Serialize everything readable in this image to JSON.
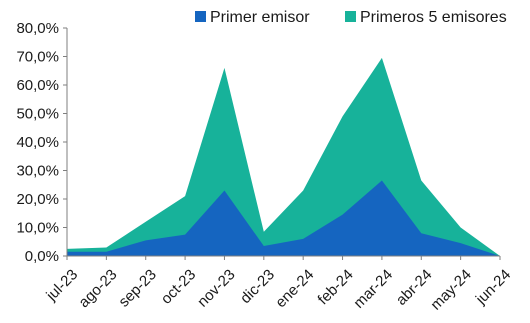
{
  "chart_data": {
    "type": "area",
    "stacked": false,
    "categories": [
      "jul-23",
      "ago-23",
      "sep-23",
      "oct-23",
      "nov-23",
      "dic-23",
      "ene-24",
      "feb-24",
      "mar-24",
      "abr-24",
      "may-24",
      "jun-24"
    ],
    "series": [
      {
        "name": "Primer emisor",
        "color": "#1565C0",
        "values": [
          1.5,
          1.5,
          5.5,
          7.5,
          23.0,
          3.5,
          6.0,
          14.5,
          26.5,
          8.0,
          4.5,
          0.0
        ]
      },
      {
        "name": "Primeros 5 emisores",
        "color": "#17B29A",
        "values": [
          2.5,
          3.0,
          12.0,
          21.0,
          66.0,
          8.5,
          23.0,
          49.0,
          69.5,
          26.5,
          10.0,
          0.0
        ]
      }
    ],
    "y_tick_labels": [
      "0,0%",
      "10,0%",
      "20,0%",
      "30,0%",
      "40,0%",
      "50,0%",
      "60,0%",
      "70,0%",
      "80,0%"
    ],
    "ylim": [
      0,
      80
    ],
    "y_unit": "%",
    "grid": false,
    "legend_position": "top-right",
    "xlabel": "",
    "ylabel": "",
    "title": ""
  }
}
